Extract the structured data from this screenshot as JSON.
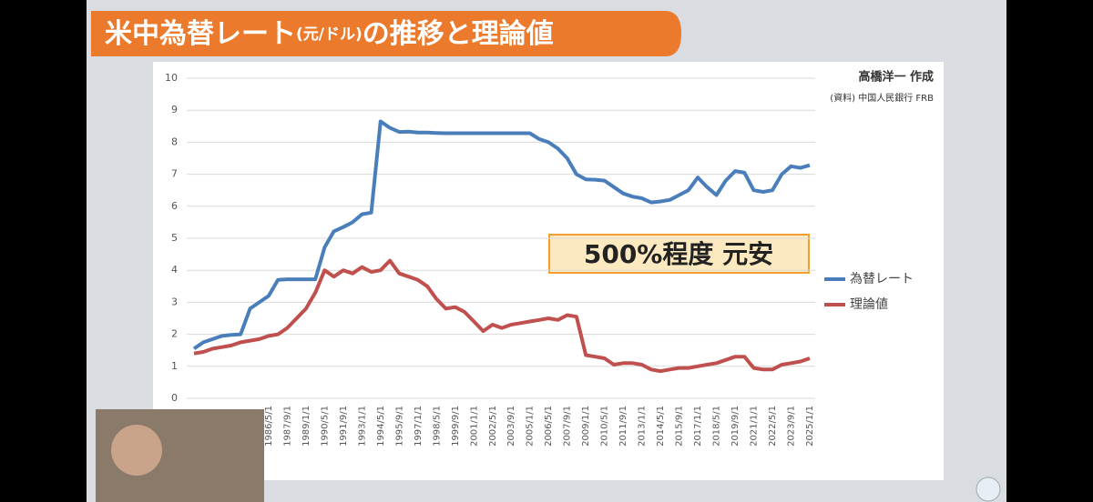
{
  "chart_data": {
    "type": "line",
    "title": "米中為替レート",
    "title_unit": "(元/ドル)",
    "title_suffix": "の推移と理論値",
    "credit": "高橋洋一 作成",
    "source": "(資料) 中国人民銀行 FRB",
    "annotation": "500%程度 元安",
    "categories": [
      null,
      null,
      null,
      null,
      null,
      null,
      null,
      null,
      "1986/5/1",
      null,
      "1987/9/1",
      null,
      "1989/1/1",
      null,
      "1990/5/1",
      null,
      "1991/9/1",
      null,
      "1993/1/1",
      null,
      "1994/5/1",
      null,
      "1995/9/1",
      null,
      "1997/1/1",
      null,
      "1998/5/1",
      null,
      "1999/9/1",
      null,
      "2001/1/1",
      null,
      "2002/5/1",
      null,
      "2003/9/1",
      null,
      "2005/1/1",
      null,
      "2006/5/1",
      null,
      "2007/9/1",
      null,
      "2009/1/1",
      null,
      "2010/5/1",
      null,
      "2011/9/1",
      null,
      "2013/1/1",
      null,
      "2014/5/1",
      null,
      "2015/9/1",
      null,
      "2017/1/1",
      null,
      "2018/5/1",
      null,
      "2019/9/1",
      null,
      "2021/1/1",
      null,
      "2022/5/1",
      null,
      "2023/9/1",
      null,
      "2025/1/1"
    ],
    "series": [
      {
        "name": "為替レート",
        "color": "#4a7ebb",
        "values": [
          1.55,
          1.75,
          1.85,
          1.95,
          1.98,
          2.0,
          2.8,
          3.0,
          3.2,
          3.7,
          3.72,
          3.72,
          3.72,
          3.72,
          4.72,
          5.22,
          5.35,
          5.5,
          5.75,
          5.8,
          8.65,
          8.45,
          8.32,
          8.33,
          8.3,
          8.3,
          8.29,
          8.28,
          8.28,
          8.28,
          8.28,
          8.28,
          8.28,
          8.28,
          8.28,
          8.28,
          8.28,
          8.1,
          8.0,
          7.8,
          7.5,
          7.0,
          6.84,
          6.83,
          6.8,
          6.6,
          6.4,
          6.3,
          6.25,
          6.12,
          6.15,
          6.2,
          6.35,
          6.5,
          6.9,
          6.6,
          6.35,
          6.8,
          7.1,
          7.05,
          6.5,
          6.45,
          6.5,
          7.0,
          7.25,
          7.2,
          7.28
        ]
      },
      {
        "name": "理論値",
        "color": "#c0504d",
        "values": [
          1.4,
          1.45,
          1.55,
          1.6,
          1.65,
          1.75,
          1.8,
          1.85,
          1.95,
          2.0,
          2.2,
          2.5,
          2.8,
          3.3,
          4.0,
          3.8,
          4.0,
          3.9,
          4.1,
          3.95,
          4.0,
          4.3,
          3.9,
          3.8,
          3.7,
          3.5,
          3.1,
          2.8,
          2.85,
          2.7,
          2.4,
          2.1,
          2.3,
          2.2,
          2.3,
          2.35,
          2.4,
          2.45,
          2.5,
          2.45,
          2.6,
          2.55,
          1.35,
          1.3,
          1.25,
          1.05,
          1.1,
          1.1,
          1.05,
          0.9,
          0.85,
          0.9,
          0.95,
          0.95,
          1.0,
          1.05,
          1.1,
          1.2,
          1.3,
          1.3,
          0.95,
          0.9,
          0.9,
          1.05,
          1.1,
          1.15,
          1.25
        ]
      }
    ],
    "ylim": [
      0,
      10
    ],
    "yticks": [
      0,
      1,
      2,
      3,
      4,
      5,
      6,
      7,
      8,
      9,
      10
    ],
    "grid": true,
    "legend": "right"
  }
}
